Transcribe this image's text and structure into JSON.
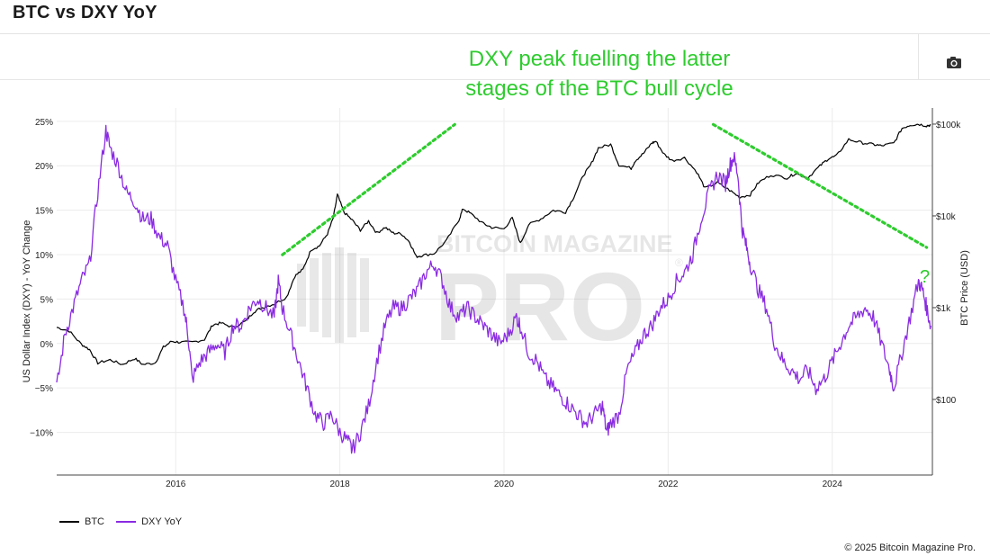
{
  "header": {
    "title": "BTC vs DXY YoY"
  },
  "toolbar": {
    "camera_icon": "camera-icon"
  },
  "annotation": {
    "line1": "DXY peak fuelling the latter",
    "line2": "stages of the BTC bull cycle",
    "question": "?",
    "color": "#2ecc2e"
  },
  "watermark": {
    "line1": "BITCOIN MAGAZINE",
    "line2": "PRO",
    "registered": "®"
  },
  "colors": {
    "btc": "#000000",
    "dxy": "#8a2be2",
    "grid": "#ececec"
  },
  "chart_data": {
    "type": "line",
    "x_ticks": [
      "2016",
      "2018",
      "2020",
      "2022",
      "2024"
    ],
    "y_left": {
      "label": "US Dollar Index (DXY) - YoY Change",
      "ticks": [
        -10,
        -5,
        0,
        5,
        10,
        15,
        20,
        25
      ],
      "tick_labels": [
        "−10%",
        "−5%",
        "0%",
        "5%",
        "10%",
        "15%",
        "20%",
        "25%"
      ],
      "range": [
        -14.8,
        26.5
      ]
    },
    "y_right": {
      "label": "BTC Price (USD)",
      "scale": "log",
      "ticks": [
        100,
        1000,
        10000,
        100000
      ],
      "tick_labels": [
        "$100",
        "$1k",
        "$10k",
        "$100k"
      ],
      "range": [
        15,
        150000
      ]
    },
    "x_range": [
      2014.55,
      2025.22
    ],
    "series": [
      {
        "name": "BTC",
        "axis": "right",
        "points": [
          [
            2014.55,
            610
          ],
          [
            2014.7,
            560
          ],
          [
            2014.85,
            400
          ],
          [
            2014.95,
            350
          ],
          [
            2015.05,
            250
          ],
          [
            2015.2,
            270
          ],
          [
            2015.35,
            240
          ],
          [
            2015.5,
            280
          ],
          [
            2015.6,
            240
          ],
          [
            2015.75,
            250
          ],
          [
            2015.85,
            370
          ],
          [
            2015.95,
            430
          ],
          [
            2016.05,
            420
          ],
          [
            2016.2,
            420
          ],
          [
            2016.35,
            450
          ],
          [
            2016.45,
            650
          ],
          [
            2016.55,
            680
          ],
          [
            2016.7,
            610
          ],
          [
            2016.85,
            710
          ],
          [
            2016.95,
            900
          ],
          [
            2017.05,
            1000
          ],
          [
            2017.2,
            1100
          ],
          [
            2017.35,
            1300
          ],
          [
            2017.45,
            2200
          ],
          [
            2017.55,
            2600
          ],
          [
            2017.65,
            4300
          ],
          [
            2017.75,
            4700
          ],
          [
            2017.85,
            6400
          ],
          [
            2017.92,
            9500
          ],
          [
            2017.97,
            17000
          ],
          [
            2018.05,
            11000
          ],
          [
            2018.15,
            9000
          ],
          [
            2018.25,
            7000
          ],
          [
            2018.35,
            8800
          ],
          [
            2018.45,
            6500
          ],
          [
            2018.55,
            7500
          ],
          [
            2018.65,
            6500
          ],
          [
            2018.75,
            6400
          ],
          [
            2018.85,
            5200
          ],
          [
            2018.93,
            3600
          ],
          [
            2019.0,
            3700
          ],
          [
            2019.15,
            3900
          ],
          [
            2019.3,
            5400
          ],
          [
            2019.45,
            9000
          ],
          [
            2019.5,
            12000
          ],
          [
            2019.6,
            10500
          ],
          [
            2019.75,
            8200
          ],
          [
            2019.85,
            7500
          ],
          [
            2020.0,
            7200
          ],
          [
            2020.1,
            9500
          ],
          [
            2020.2,
            5000
          ],
          [
            2020.3,
            8000
          ],
          [
            2020.45,
            9300
          ],
          [
            2020.6,
            11500
          ],
          [
            2020.75,
            11000
          ],
          [
            2020.85,
            16000
          ],
          [
            2020.97,
            28000
          ],
          [
            2021.05,
            35000
          ],
          [
            2021.15,
            55000
          ],
          [
            2021.3,
            60000
          ],
          [
            2021.4,
            36000
          ],
          [
            2021.55,
            33000
          ],
          [
            2021.6,
            40000
          ],
          [
            2021.7,
            48000
          ],
          [
            2021.8,
            62000
          ],
          [
            2021.85,
            65000
          ],
          [
            2021.95,
            47000
          ],
          [
            2022.05,
            40000
          ],
          [
            2022.2,
            43000
          ],
          [
            2022.35,
            30000
          ],
          [
            2022.45,
            20000
          ],
          [
            2022.6,
            23000
          ],
          [
            2022.75,
            19000
          ],
          [
            2022.87,
            16000
          ],
          [
            2023.0,
            17000
          ],
          [
            2023.1,
            23000
          ],
          [
            2023.25,
            28000
          ],
          [
            2023.45,
            26000
          ],
          [
            2023.55,
            29000
          ],
          [
            2023.7,
            26000
          ],
          [
            2023.85,
            35000
          ],
          [
            2023.95,
            42000
          ],
          [
            2024.05,
            45000
          ],
          [
            2024.2,
            68000
          ],
          [
            2024.35,
            63000
          ],
          [
            2024.5,
            60000
          ],
          [
            2024.6,
            58000
          ],
          [
            2024.75,
            62000
          ],
          [
            2024.85,
            90000
          ],
          [
            2024.95,
            98000
          ],
          [
            2025.05,
            100000
          ],
          [
            2025.15,
            96000
          ],
          [
            2025.2,
            98000
          ]
        ]
      },
      {
        "name": "DXY YoY",
        "axis": "left",
        "points": [
          [
            2014.55,
            -5
          ],
          [
            2014.65,
            1
          ],
          [
            2014.75,
            4
          ],
          [
            2014.85,
            7
          ],
          [
            2014.95,
            9
          ],
          [
            2015.05,
            17
          ],
          [
            2015.15,
            24
          ],
          [
            2015.2,
            22
          ],
          [
            2015.3,
            20
          ],
          [
            2015.4,
            17
          ],
          [
            2015.5,
            16
          ],
          [
            2015.6,
            14
          ],
          [
            2015.7,
            14
          ],
          [
            2015.8,
            12
          ],
          [
            2015.9,
            11
          ],
          [
            2016.0,
            7
          ],
          [
            2016.1,
            4
          ],
          [
            2016.15,
            1
          ],
          [
            2016.2,
            -4
          ],
          [
            2016.3,
            -2
          ],
          [
            2016.4,
            -1
          ],
          [
            2016.5,
            0
          ],
          [
            2016.6,
            -1
          ],
          [
            2016.7,
            2
          ],
          [
            2016.8,
            2
          ],
          [
            2016.9,
            4
          ],
          [
            2017.0,
            5
          ],
          [
            2017.1,
            4
          ],
          [
            2017.2,
            3
          ],
          [
            2017.25,
            7
          ],
          [
            2017.3,
            4
          ],
          [
            2017.4,
            1
          ],
          [
            2017.5,
            -2
          ],
          [
            2017.6,
            -5
          ],
          [
            2017.7,
            -8
          ],
          [
            2017.8,
            -9
          ],
          [
            2017.9,
            -8
          ],
          [
            2018.0,
            -10
          ],
          [
            2018.1,
            -11
          ],
          [
            2018.15,
            -12
          ],
          [
            2018.25,
            -10
          ],
          [
            2018.35,
            -7
          ],
          [
            2018.45,
            -2
          ],
          [
            2018.55,
            2
          ],
          [
            2018.65,
            4
          ],
          [
            2018.75,
            4
          ],
          [
            2018.85,
            5
          ],
          [
            2018.95,
            6
          ],
          [
            2019.05,
            8
          ],
          [
            2019.15,
            9
          ],
          [
            2019.25,
            7
          ],
          [
            2019.35,
            4
          ],
          [
            2019.45,
            3
          ],
          [
            2019.55,
            4
          ],
          [
            2019.65,
            3
          ],
          [
            2019.75,
            2
          ],
          [
            2019.85,
            1
          ],
          [
            2019.95,
            0
          ],
          [
            2020.05,
            1
          ],
          [
            2020.15,
            3
          ],
          [
            2020.2,
            2
          ],
          [
            2020.3,
            -1
          ],
          [
            2020.4,
            -2
          ],
          [
            2020.5,
            -4
          ],
          [
            2020.6,
            -5
          ],
          [
            2020.7,
            -6
          ],
          [
            2020.8,
            -7
          ],
          [
            2020.9,
            -8
          ],
          [
            2021.0,
            -9
          ],
          [
            2021.1,
            -8
          ],
          [
            2021.2,
            -7
          ],
          [
            2021.25,
            -10
          ],
          [
            2021.3,
            -9
          ],
          [
            2021.4,
            -8
          ],
          [
            2021.5,
            -3
          ],
          [
            2021.6,
            -1
          ],
          [
            2021.7,
            1
          ],
          [
            2021.8,
            2
          ],
          [
            2021.9,
            4
          ],
          [
            2022.0,
            5
          ],
          [
            2022.1,
            7
          ],
          [
            2022.2,
            8
          ],
          [
            2022.3,
            10
          ],
          [
            2022.4,
            14
          ],
          [
            2022.5,
            17
          ],
          [
            2022.6,
            19
          ],
          [
            2022.7,
            18
          ],
          [
            2022.75,
            20
          ],
          [
            2022.8,
            21
          ],
          [
            2022.85,
            19
          ],
          [
            2022.9,
            13
          ],
          [
            2022.95,
            11
          ],
          [
            2023.0,
            9
          ],
          [
            2023.1,
            6
          ],
          [
            2023.2,
            4
          ],
          [
            2023.3,
            0
          ],
          [
            2023.4,
            -2
          ],
          [
            2023.5,
            -3
          ],
          [
            2023.6,
            -4
          ],
          [
            2023.7,
            -3
          ],
          [
            2023.8,
            -5
          ],
          [
            2023.9,
            -4
          ],
          [
            2024.0,
            -2
          ],
          [
            2024.1,
            0
          ],
          [
            2024.2,
            2
          ],
          [
            2024.3,
            3
          ],
          [
            2024.4,
            4
          ],
          [
            2024.5,
            3
          ],
          [
            2024.6,
            0
          ],
          [
            2024.7,
            -3
          ],
          [
            2024.75,
            -5
          ],
          [
            2024.85,
            -1
          ],
          [
            2024.95,
            3
          ],
          [
            2025.05,
            7
          ],
          [
            2025.1,
            6
          ],
          [
            2025.15,
            4
          ],
          [
            2025.2,
            2
          ]
        ]
      }
    ],
    "annotation_lines": [
      {
        "from": [
          2017.3,
          0.6
        ],
        "to": [
          2019.4,
          0.955
        ]
      },
      {
        "from": [
          2022.55,
          0.955
        ],
        "to": [
          2025.15,
          0.62
        ]
      }
    ]
  },
  "legend": {
    "btc": "BTC",
    "dxy": "DXY YoY"
  },
  "footer": {
    "copyright": "© 2025 Bitcoin Magazine Pro."
  }
}
